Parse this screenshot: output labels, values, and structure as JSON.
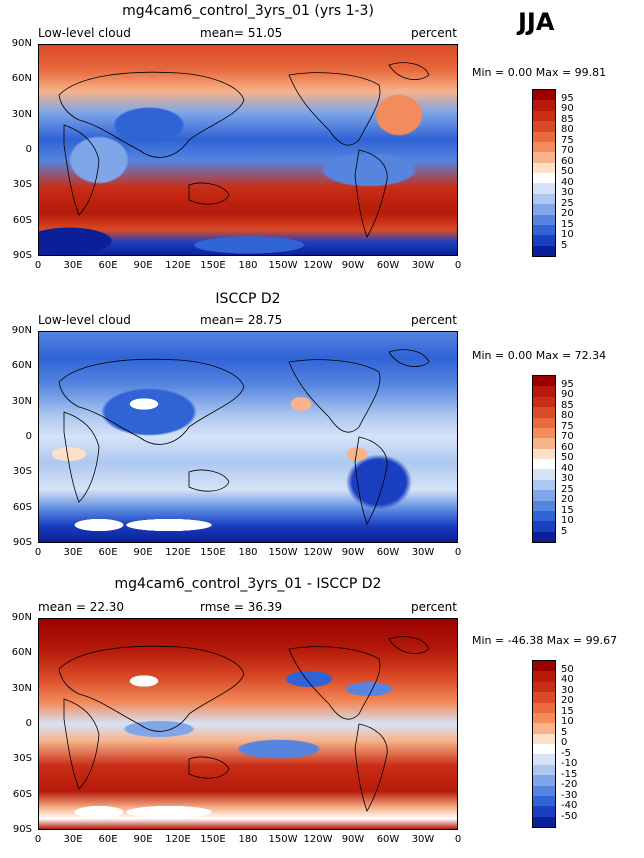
{
  "season": "JJA",
  "lat_labels": [
    "90N",
    "60N",
    "30N",
    "0",
    "30S",
    "60S",
    "90S"
  ],
  "lon_labels": [
    "0",
    "30E",
    "60E",
    "90E",
    "120E",
    "150E",
    "180",
    "150W",
    "120W",
    "90W",
    "60W",
    "30W",
    "0"
  ],
  "panels": [
    {
      "title": "mg4cam6_control_3yrs_01 (yrs 1-3)",
      "left_text": "Low-level cloud",
      "center_text": "mean=  51.05",
      "right_text": "percent",
      "stats": "Min =    0.00 Max =  99.81",
      "colorbar_labels": [
        "95",
        "90",
        "85",
        "80",
        "75",
        "70",
        "60",
        "50",
        "40",
        "30",
        "25",
        "20",
        "15",
        "10",
        "5"
      ],
      "colors": [
        "#9b0000",
        "#b51a0a",
        "#c92d16",
        "#da4a26",
        "#e86a3e",
        "#f28c5c",
        "#f7b38a",
        "#fde0c8",
        "#ffffff",
        "#d6e3f7",
        "#adc8f0",
        "#7fa6e8",
        "#5585df",
        "#2f63d6",
        "#1a3fc0",
        "#0b1f98"
      ]
    },
    {
      "title": "ISCCP D2",
      "left_text": "Low-level cloud",
      "center_text": "mean=  28.75",
      "right_text": "percent",
      "stats": "Min =    0.00 Max =  72.34",
      "colorbar_labels": [
        "95",
        "90",
        "85",
        "80",
        "75",
        "70",
        "60",
        "50",
        "40",
        "30",
        "25",
        "20",
        "15",
        "10",
        "5"
      ],
      "colors": [
        "#9b0000",
        "#b51a0a",
        "#c92d16",
        "#da4a26",
        "#e86a3e",
        "#f28c5c",
        "#f7b38a",
        "#fde0c8",
        "#ffffff",
        "#d6e3f7",
        "#adc8f0",
        "#7fa6e8",
        "#5585df",
        "#2f63d6",
        "#1a3fc0",
        "#0b1f98"
      ]
    },
    {
      "title": "mg4cam6_control_3yrs_01 - ISCCP D2",
      "left_text": "mean =  22.30",
      "center_text": "rmse =  36.39",
      "right_text": "percent",
      "stats": "Min = -46.38 Max =  99.67",
      "colorbar_labels": [
        "50",
        "40",
        "30",
        "20",
        "15",
        "10",
        "5",
        "0",
        "-5",
        "-10",
        "-15",
        "-20",
        "-30",
        "-40",
        "-50"
      ],
      "colors": [
        "#9b0000",
        "#b51a0a",
        "#c92d16",
        "#da4a26",
        "#e86a3e",
        "#f28c5c",
        "#f7b38a",
        "#fde0c8",
        "#ffffff",
        "#d6e3f7",
        "#adc8f0",
        "#7fa6e8",
        "#5585df",
        "#2f63d6",
        "#1a3fc0",
        "#0b1f98"
      ]
    }
  ]
}
